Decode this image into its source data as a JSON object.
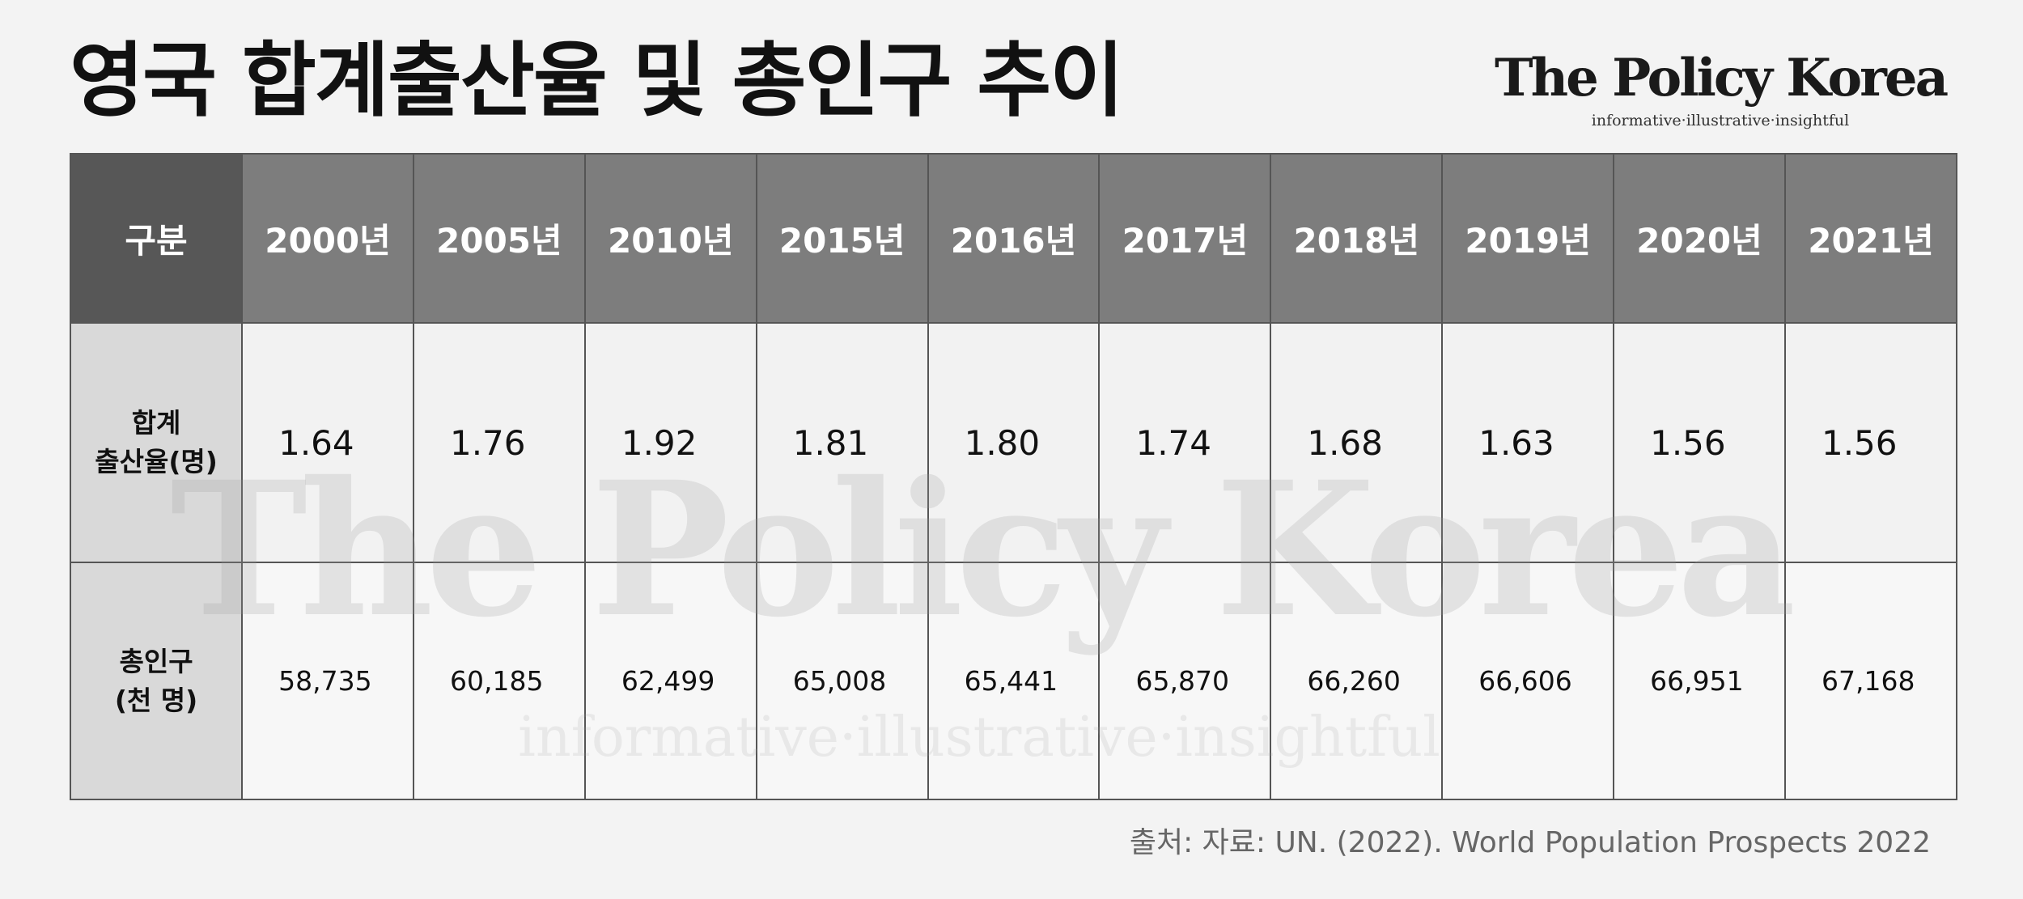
{
  "title": "영국 합계출산율 및 총인구 추이",
  "brand": {
    "name": "The Policy Korea",
    "tagline": "informative·illustrative·insightful"
  },
  "watermark": {
    "name": "The Policy Korea",
    "tagline": "informative·illustrative·insightful"
  },
  "source": "출처: 자료: UN. (2022). World Population Prospects 2022",
  "colors": {
    "header_bg": "#7d7d7d",
    "corner_bg": "#575757",
    "label_bg": "#d9d9d9",
    "page_bg": "#f3f3f3"
  },
  "chart_data": {
    "type": "table",
    "title": "영국 합계출산율 및 총인구 추이",
    "corner_label": "구분",
    "columns": [
      "2000년",
      "2005년",
      "2010년",
      "2015년",
      "2016년",
      "2017년",
      "2018년",
      "2019년",
      "2020년",
      "2021년"
    ],
    "rows": [
      {
        "label_lines": [
          "합계",
          "출산율(명)"
        ],
        "values": [
          "1.64",
          "1.76",
          "1.92",
          "1.81",
          "1.80",
          "1.74",
          "1.68",
          "1.63",
          "1.56",
          "1.56"
        ]
      },
      {
        "label_lines": [
          "총인구",
          "(천 명)"
        ],
        "values": [
          "58,735",
          "60,185",
          "62,499",
          "65,008",
          "65,441",
          "65,870",
          "66,260",
          "66,606",
          "66,951",
          "67,168"
        ]
      }
    ]
  }
}
